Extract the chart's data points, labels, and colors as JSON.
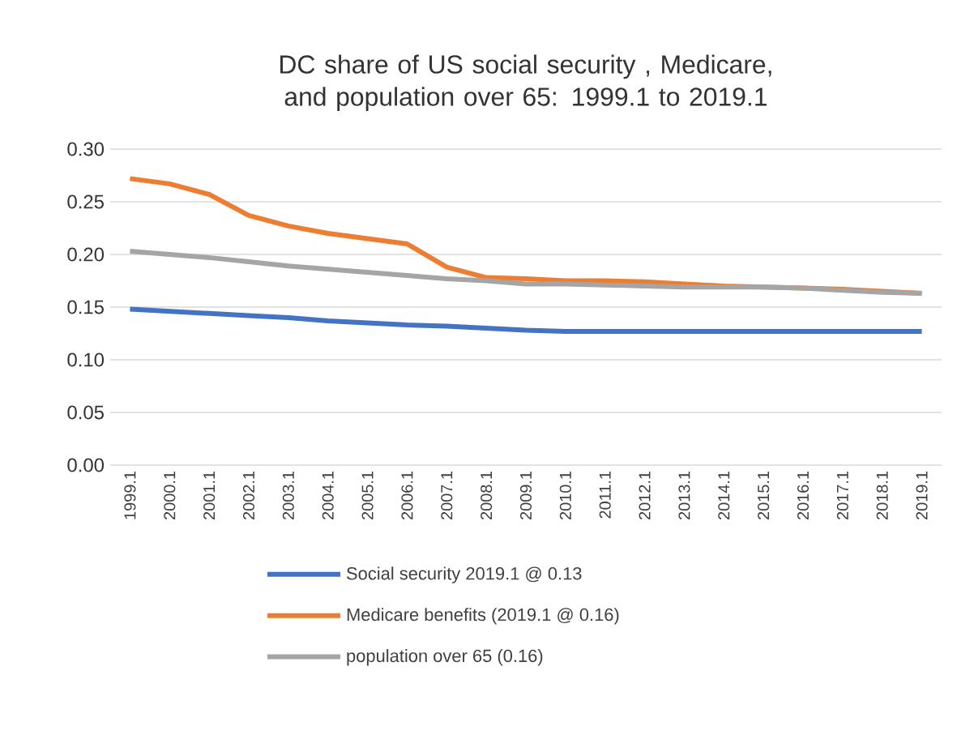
{
  "chart_data": {
    "type": "line",
    "title": "DC share of US social security , Medicare, and population over 65: 1999.1 to 2019.1",
    "categories": [
      "1999.1",
      "2000.1",
      "2001.1",
      "2002.1",
      "2003.1",
      "2004.1",
      "2005.1",
      "2006.1",
      "2007.1",
      "2008.1",
      "2009.1",
      "2010.1",
      "2011.1",
      "2012.1",
      "2013.1",
      "2014.1",
      "2015.1",
      "2016.1",
      "2017.1",
      "2018.1",
      "2019.1"
    ],
    "series": [
      {
        "name": "Social security 2019.1 @ 0.13",
        "color": "#4472c4",
        "values": [
          0.148,
          0.146,
          0.144,
          0.142,
          0.14,
          0.137,
          0.135,
          0.133,
          0.132,
          0.13,
          0.128,
          0.127,
          0.127,
          0.127,
          0.127,
          0.127,
          0.127,
          0.127,
          0.127,
          0.127,
          0.127
        ]
      },
      {
        "name": "Medicare benefits (2019.1 @ 0.16)",
        "color": "#ed7d31",
        "values": [
          0.272,
          0.267,
          0.257,
          0.237,
          0.227,
          0.22,
          0.215,
          0.21,
          0.188,
          0.178,
          0.177,
          0.175,
          0.175,
          0.174,
          0.172,
          0.17,
          0.169,
          0.168,
          0.167,
          0.165,
          0.163
        ]
      },
      {
        "name": "population over 65 (0.16)",
        "color": "#a5a5a5",
        "values": [
          0.203,
          0.2,
          0.197,
          0.193,
          0.189,
          0.186,
          0.183,
          0.18,
          0.177,
          0.175,
          0.172,
          0.172,
          0.171,
          0.17,
          0.169,
          0.169,
          0.169,
          0.168,
          0.166,
          0.164,
          0.163
        ]
      }
    ],
    "ylim": [
      0,
      0.3
    ],
    "yticks": [
      {
        "value": 0,
        "label": "0.00"
      },
      {
        "value": 0.05,
        "label": "0.05"
      },
      {
        "value": 0.1,
        "label": "0.10"
      },
      {
        "value": 0.15,
        "label": "0.15"
      },
      {
        "value": 0.2,
        "label": "0.20"
      },
      {
        "value": 0.25,
        "label": "0.25"
      },
      {
        "value": 0.3,
        "label": "0.30"
      }
    ],
    "grid": "y",
    "legend": "bottom",
    "marker": "none",
    "line_style": "solid"
  }
}
